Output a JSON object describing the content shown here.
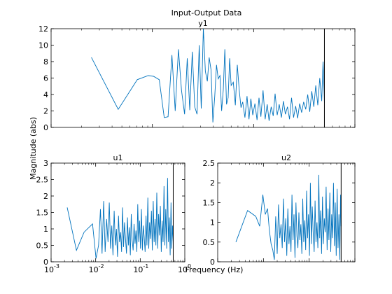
{
  "figure": {
    "title": "Input-Output Data",
    "xlabel": "Frequency  (Hz)",
    "ylabel": "Magnitude (abs)"
  },
  "chart_data": [
    {
      "type": "line",
      "title": "y1",
      "x_scale": "log",
      "xlim": [
        0.001,
        1
      ],
      "ylim": [
        0,
        12
      ],
      "yticks": [
        "0",
        "2",
        "4",
        "6",
        "8",
        "10",
        "12"
      ],
      "xticks": [],
      "vline_x": 0.5,
      "series": [
        {
          "color": "#0072bd",
          "x": [
            0.0025,
            0.0046,
            0.0071,
            0.0091,
            0.0103,
            0.0117,
            0.0131,
            0.0143,
            0.0156,
            0.0168,
            0.0181,
            0.0194,
            0.0208,
            0.0221,
            0.0234,
            0.0248,
            0.0262,
            0.0276,
            0.029,
            0.0304,
            0.0319,
            0.0334,
            0.0349,
            0.0364,
            0.038,
            0.0396,
            0.0413,
            0.043,
            0.0447,
            0.0465,
            0.0483,
            0.0502,
            0.052,
            0.054,
            0.056,
            0.058,
            0.06,
            0.063,
            0.066,
            0.069,
            0.072,
            0.075,
            0.078,
            0.082,
            0.086,
            0.09,
            0.094,
            0.098,
            0.103,
            0.108,
            0.113,
            0.118,
            0.124,
            0.13,
            0.136,
            0.142,
            0.149,
            0.156,
            0.163,
            0.171,
            0.179,
            0.188,
            0.197,
            0.206,
            0.216,
            0.226,
            0.237,
            0.248,
            0.26,
            0.272,
            0.285,
            0.298,
            0.312,
            0.327,
            0.342,
            0.358,
            0.375,
            0.393,
            0.411,
            0.43,
            0.45,
            0.47,
            0.485,
            0.5
          ],
          "y": [
            8.5,
            2.2,
            5.8,
            6.3,
            6.2,
            5.8,
            1.2,
            1.3,
            8.8,
            2.0,
            9.5,
            4.5,
            1.6,
            8.4,
            2.1,
            9.2,
            2.5,
            1.6,
            10.0,
            2.3,
            12.0,
            6.8,
            5.6,
            8.5,
            7.0,
            0.6,
            3.8,
            7.6,
            5.9,
            6.3,
            2.0,
            4.6,
            9.5,
            2.8,
            3.6,
            8.4,
            5.1,
            5.5,
            2.7,
            7.6,
            4.6,
            2.4,
            3.1,
            1.2,
            3.8,
            1.0,
            3.5,
            1.5,
            2.9,
            0.9,
            3.6,
            1.3,
            4.5,
            1.0,
            2.8,
            0.8,
            2.5,
            1.4,
            4.1,
            1.5,
            2.8,
            1.2,
            3.2,
            1.6,
            2.5,
            1.0,
            3.6,
            1.2,
            2.6,
            1.1,
            2.9,
            1.8,
            3.1,
            2.2,
            4.0,
            1.9,
            4.4,
            2.5,
            5.1,
            2.7,
            6.0,
            3.2,
            8.0,
            3.0
          ]
        }
      ]
    },
    {
      "type": "line",
      "title": "u1",
      "x_scale": "log",
      "xlim": [
        0.001,
        1
      ],
      "ylim": [
        0,
        3
      ],
      "yticks": [
        "0",
        "0.5",
        "1",
        "1.5",
        "2",
        "2.5",
        "3"
      ],
      "xticks": [
        {
          "label": "10",
          "exp": "-3",
          "value": 0.001
        },
        {
          "label": "10",
          "exp": "-2",
          "value": 0.01
        },
        {
          "label": "10",
          "exp": "-1",
          "value": 0.1
        },
        {
          "label": "10",
          "exp": "0",
          "value": 1
        }
      ],
      "vline_x": 0.55,
      "series": [
        {
          "color": "#0072bd",
          "x": [
            0.0023,
            0.0037,
            0.0055,
            0.0085,
            0.0102,
            0.0116,
            0.0128,
            0.0139,
            0.0151,
            0.0163,
            0.0176,
            0.0189,
            0.0202,
            0.0216,
            0.023,
            0.0245,
            0.026,
            0.0276,
            0.0292,
            0.0309,
            0.0326,
            0.0344,
            0.0363,
            0.0382,
            0.0402,
            0.0423,
            0.0445,
            0.0468,
            0.0492,
            0.0517,
            0.0543,
            0.057,
            0.0599,
            0.0629,
            0.066,
            0.0693,
            0.0727,
            0.0763,
            0.08,
            0.0839,
            0.088,
            0.0923,
            0.0968,
            0.1015,
            0.1064,
            0.1116,
            0.117,
            0.1226,
            0.1285,
            0.1347,
            0.1411,
            0.1479,
            0.155,
            0.1624,
            0.1702,
            0.1783,
            0.1868,
            0.1957,
            0.205,
            0.2147,
            0.2249,
            0.2356,
            0.2467,
            0.2584,
            0.2707,
            0.2835,
            0.2969,
            0.311,
            0.3257,
            0.3411,
            0.3572,
            0.3741,
            0.3918,
            0.4103,
            0.4297,
            0.45,
            0.47,
            0.49,
            0.51,
            0.53,
            0.55
          ],
          "y": [
            1.65,
            0.35,
            0.9,
            1.15,
            0.1,
            0.5,
            1.6,
            0.25,
            1.85,
            0.3,
            1.3,
            0.6,
            1.8,
            0.4,
            1.1,
            0.2,
            1.55,
            0.5,
            1.0,
            0.15,
            1.4,
            0.6,
            0.9,
            0.3,
            1.65,
            0.45,
            1.2,
            0.7,
            0.25,
            1.35,
            0.5,
            1.05,
            0.2,
            1.45,
            0.65,
            0.35,
            1.15,
            0.55,
            0.95,
            0.3,
            1.75,
            0.6,
            1.25,
            0.4,
            1.6,
            0.35,
            1.1,
            0.75,
            0.3,
            1.4,
            0.5,
            1.95,
            0.4,
            1.2,
            0.7,
            1.55,
            0.35,
            1.85,
            0.6,
            1.3,
            0.5,
            2.1,
            0.4,
            1.45,
            0.8,
            1.7,
            0.3,
            1.25,
            0.6,
            2.3,
            0.5,
            1.6,
            0.4,
            2.55,
            0.6,
            1.35,
            0.2,
            1.8,
            0.4,
            1.1,
            0.6
          ]
        }
      ]
    },
    {
      "type": "line",
      "title": "u2",
      "x_scale": "log",
      "xlim": [
        0.001,
        1
      ],
      "ylim": [
        0,
        2.5
      ],
      "yticks": [
        "0",
        "0.5",
        "1",
        "1.5",
        "2",
        "2.5"
      ],
      "xticks": [],
      "vline_x": 0.5,
      "series": [
        {
          "color": "#0072bd",
          "x": [
            0.0025,
            0.0045,
            0.0068,
            0.0083,
            0.0097,
            0.011,
            0.0123,
            0.0135,
            0.0147,
            0.016,
            0.0173,
            0.0186,
            0.02,
            0.0214,
            0.0228,
            0.0243,
            0.0258,
            0.0274,
            0.029,
            0.0307,
            0.0324,
            0.0342,
            0.0361,
            0.038,
            0.04,
            0.0421,
            0.0443,
            0.0466,
            0.049,
            0.0515,
            0.0541,
            0.0568,
            0.0597,
            0.0627,
            0.0658,
            0.0691,
            0.0725,
            0.0761,
            0.0799,
            0.0838,
            0.0879,
            0.0922,
            0.0967,
            0.1014,
            0.1063,
            0.1115,
            0.1169,
            0.1225,
            0.1284,
            0.1346,
            0.1411,
            0.1478,
            0.1549,
            0.1623,
            0.17,
            0.1781,
            0.1866,
            0.1955,
            0.2048,
            0.2145,
            0.2247,
            0.2353,
            0.2464,
            0.258,
            0.2702,
            0.2829,
            0.2962,
            0.3101,
            0.3246,
            0.3398,
            0.3557,
            0.3723,
            0.3897,
            0.4079,
            0.427,
            0.447,
            0.467,
            0.485,
            0.5
          ],
          "y": [
            0.5,
            1.3,
            1.15,
            0.9,
            1.7,
            1.2,
            1.35,
            0.8,
            0.45,
            0.3,
            0.05,
            1.15,
            0.2,
            1.45,
            0.6,
            0.95,
            0.35,
            1.6,
            0.5,
            1.1,
            0.15,
            1.35,
            0.45,
            0.9,
            0.25,
            1.7,
            0.55,
            1.2,
            0.1,
            1.5,
            0.65,
            0.35,
            1.25,
            0.55,
            0.95,
            0.2,
            1.6,
            0.5,
            1.05,
            0.3,
            1.8,
            0.6,
            1.2,
            0.15,
            2.0,
            0.45,
            1.4,
            0.75,
            0.25,
            1.55,
            0.5,
            1.0,
            0.35,
            2.2,
            0.6,
            1.3,
            0.2,
            1.65,
            0.45,
            1.1,
            0.75,
            1.9,
            0.3,
            1.35,
            0.55,
            1.75,
            0.25,
            1.2,
            0.6,
            2.0,
            0.4,
            1.5,
            0.15,
            1.85,
            0.35,
            1.2,
            0.05,
            1.7,
            0.9
          ]
        }
      ]
    }
  ]
}
